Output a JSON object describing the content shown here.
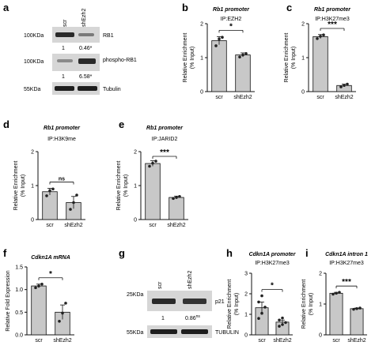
{
  "panels": {
    "a": {
      "letter": "a",
      "lanes": [
        "scr",
        "shEzh2"
      ],
      "markers": [
        "100KDa",
        "100KDa",
        "55KDa"
      ],
      "bands": [
        "RB1",
        "phospho-RB1",
        "Tubulin"
      ],
      "quant_rb1": [
        "1",
        "0.46*"
      ],
      "quant_prb1": [
        "1",
        "6.58*"
      ]
    },
    "g": {
      "letter": "g",
      "lanes": [
        "scr",
        "shEzh2"
      ],
      "markers": [
        "25KDa",
        "55KDa"
      ],
      "bands": [
        "p21",
        "TUBULIN"
      ],
      "quant": [
        "1",
        "0.86"
      ],
      "quant_sup": "ns"
    }
  },
  "colors": {
    "bar": "#c8c8c8",
    "edge": "#111111",
    "blot_bg": "#d6d6d6",
    "band": "#2a2a2a"
  },
  "chart_data": [
    {
      "panel": "b",
      "type": "bar",
      "title": "Rb1 promoter",
      "subtitle": "IP:EZH2",
      "ylabel": "Relative Enrichment\n(% Input)",
      "categories": [
        "scr",
        "shEzh2"
      ],
      "values": [
        1.5,
        1.08
      ],
      "errors": [
        0.12,
        0.06
      ],
      "ylim": [
        0,
        2
      ],
      "yticks": [
        "0",
        "1",
        "2"
      ],
      "significance": "*",
      "points": [
        [
          1.35,
          1.55,
          1.6
        ],
        [
          1.02,
          1.08,
          1.12
        ]
      ]
    },
    {
      "panel": "c",
      "type": "bar",
      "title": "Rb1 promoter",
      "subtitle": "IP:H3K27me3",
      "ylabel": "Relative Enrichment\n(% Input)",
      "categories": [
        "scr",
        "shEzh2"
      ],
      "values": [
        1.62,
        0.18
      ],
      "errors": [
        0.06,
        0.04
      ],
      "ylim": [
        0,
        2
      ],
      "yticks": [
        "0",
        "1",
        "2"
      ],
      "significance": "***",
      "points": [
        [
          1.56,
          1.63,
          1.67
        ],
        [
          0.14,
          0.18,
          0.22
        ]
      ]
    },
    {
      "panel": "d",
      "type": "bar",
      "title": "Rb1 promoter",
      "subtitle": "IP:H3K9me",
      "ylabel": "Relative Enrichment\n(% Input)",
      "categories": [
        "scr",
        "shEzh2"
      ],
      "values": [
        0.82,
        0.5
      ],
      "errors": [
        0.1,
        0.18
      ],
      "ylim": [
        0,
        2
      ],
      "yticks": [
        "0",
        "1",
        "2"
      ],
      "significance": "ns",
      "points": [
        [
          0.7,
          0.85,
          0.9
        ],
        [
          0.3,
          0.5,
          0.72
        ]
      ]
    },
    {
      "panel": "e",
      "type": "bar",
      "title": "Rb1 promoter",
      "subtitle": "IP:JARID2",
      "ylabel": "Relative Enrichment\n(% Input)",
      "categories": [
        "scr",
        "shEzh2"
      ],
      "values": [
        1.65,
        0.65
      ],
      "errors": [
        0.08,
        0.04
      ],
      "ylim": [
        0,
        2
      ],
      "yticks": [
        "0",
        "1",
        "2"
      ],
      "significance": "***",
      "points": [
        [
          1.57,
          1.66,
          1.72
        ],
        [
          0.62,
          0.65,
          0.68
        ]
      ]
    },
    {
      "panel": "f",
      "type": "bar",
      "title": "Cdkn1A mRNA",
      "subtitle": "",
      "ylabel": "Relative Fold Expression",
      "categories": [
        "scr",
        "shEzh2"
      ],
      "values": [
        1.08,
        0.5
      ],
      "errors": [
        0.04,
        0.16
      ],
      "ylim": [
        0,
        1.5
      ],
      "yticks": [
        "0.0",
        "0.5",
        "1.0",
        "1.5"
      ],
      "significance": "*",
      "points": [
        [
          1.04,
          1.08,
          1.12
        ],
        [
          0.3,
          0.48,
          0.7
        ]
      ]
    },
    {
      "panel": "h",
      "type": "bar",
      "title": "Cdkn1A promoter",
      "subtitle": "IP:H3K27me3",
      "ylabel": "Relative Enrichment\n(% Input)",
      "categories": [
        "scr",
        "shEzh2"
      ],
      "values": [
        1.32,
        0.62
      ],
      "errors": [
        0.28,
        0.1
      ],
      "ylim": [
        0,
        3
      ],
      "yticks": [
        "0",
        "1",
        "2",
        "3"
      ],
      "significance": "*",
      "points": [
        [
          0.8,
          1.05,
          1.35,
          1.6,
          1.9
        ],
        [
          0.42,
          0.5,
          0.6,
          0.72,
          0.82
        ]
      ]
    },
    {
      "panel": "i",
      "type": "bar",
      "title": "Cdkn1A intron 1",
      "subtitle": "IP:H3K27me3",
      "ylabel": "Relative Enrichment\n(% Input)",
      "categories": [
        "scr",
        "shEzh2"
      ],
      "values": [
        1.35,
        0.85
      ],
      "errors": [
        0.03,
        0.02
      ],
      "ylim": [
        0,
        2
      ],
      "yticks": [
        "0",
        "1",
        "2"
      ],
      "significance": "***",
      "points": [
        [
          1.32,
          1.35,
          1.38
        ],
        [
          0.83,
          0.85,
          0.87
        ]
      ]
    }
  ]
}
